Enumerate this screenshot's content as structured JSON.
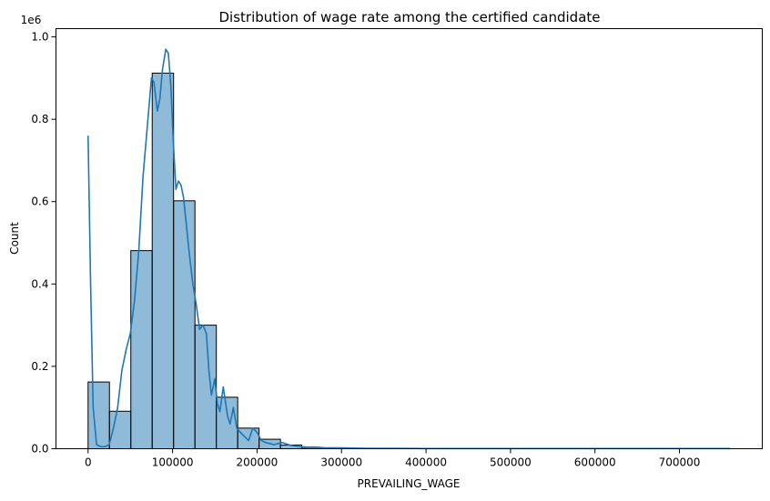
{
  "chart_data": {
    "type": "bar",
    "title": "Distribution of wage rate among the certified candidate",
    "xlabel": "PREVAILING_WAGE",
    "ylabel": "Count",
    "y_offset_label": "1e6",
    "xlim": [
      -38000,
      798000
    ],
    "ylim": [
      0,
      1.02
    ],
    "x_ticks": [
      0,
      100000,
      200000,
      300000,
      400000,
      500000,
      600000,
      700000
    ],
    "y_ticks": [
      0.0,
      0.2,
      0.4,
      0.6,
      0.8,
      1.0
    ],
    "x_tick_labels": [
      "0",
      "100000",
      "200000",
      "300000",
      "400000",
      "500000",
      "600000",
      "700000"
    ],
    "y_tick_labels": [
      "0.0",
      "0.2",
      "0.4",
      "0.6",
      "0.8",
      "1.0"
    ],
    "grid": false,
    "bin_width": 25300,
    "bins": [
      {
        "x0": 0,
        "x1": 25300,
        "count": 0.162
      },
      {
        "x0": 25300,
        "x1": 50600,
        "count": 0.091
      },
      {
        "x0": 50600,
        "x1": 75900,
        "count": 0.481
      },
      {
        "x0": 75900,
        "x1": 101200,
        "count": 0.912
      },
      {
        "x0": 101200,
        "x1": 126500,
        "count": 0.602
      },
      {
        "x0": 126500,
        "x1": 151800,
        "count": 0.3
      },
      {
        "x0": 151800,
        "x1": 177100,
        "count": 0.125
      },
      {
        "x0": 177100,
        "x1": 202400,
        "count": 0.05
      },
      {
        "x0": 202400,
        "x1": 227700,
        "count": 0.023
      },
      {
        "x0": 227700,
        "x1": 253000,
        "count": 0.009
      },
      {
        "x0": 253000,
        "x1": 278300,
        "count": 0.003
      },
      {
        "x0": 278300,
        "x1": 303600,
        "count": 0.001
      }
    ],
    "kde": {
      "x": [
        0,
        3000,
        6000,
        10000,
        15000,
        20000,
        25000,
        30000,
        35000,
        40000,
        45000,
        50000,
        55000,
        60000,
        65000,
        70000,
        75000,
        78000,
        82000,
        85000,
        88000,
        92000,
        95000,
        98000,
        101000,
        104000,
        107000,
        110000,
        113000,
        116000,
        120000,
        124000,
        128000,
        132000,
        136000,
        140000,
        143000,
        146000,
        150000,
        153000,
        156000,
        160000,
        165000,
        168000,
        172000,
        176000,
        180000,
        185000,
        190000,
        195000,
        200000,
        205000,
        210000,
        220000,
        230000,
        240000,
        250000,
        260000,
        270000,
        280000,
        300000,
        330000,
        360000,
        400000,
        500000,
        600000,
        700000,
        760000
      ],
      "y": [
        0.76,
        0.4,
        0.1,
        0.01,
        0.005,
        0.005,
        0.01,
        0.05,
        0.1,
        0.19,
        0.24,
        0.28,
        0.36,
        0.48,
        0.66,
        0.78,
        0.9,
        0.89,
        0.82,
        0.85,
        0.92,
        0.97,
        0.96,
        0.88,
        0.74,
        0.63,
        0.65,
        0.64,
        0.61,
        0.55,
        0.47,
        0.4,
        0.35,
        0.29,
        0.3,
        0.28,
        0.19,
        0.13,
        0.17,
        0.11,
        0.09,
        0.15,
        0.08,
        0.06,
        0.1,
        0.05,
        0.04,
        0.03,
        0.02,
        0.05,
        0.04,
        0.02,
        0.015,
        0.01,
        0.015,
        0.008,
        0.005,
        0.004,
        0.004,
        0.002,
        0.002,
        0.001,
        0.001,
        0.0005,
        0.0003,
        0.0003,
        0.0003,
        0.0003
      ]
    },
    "colors": {
      "bar_fill": "#1f77b4",
      "bar_edge": "#000000",
      "kde_line": "#1f77b4",
      "axis": "#000000"
    }
  }
}
